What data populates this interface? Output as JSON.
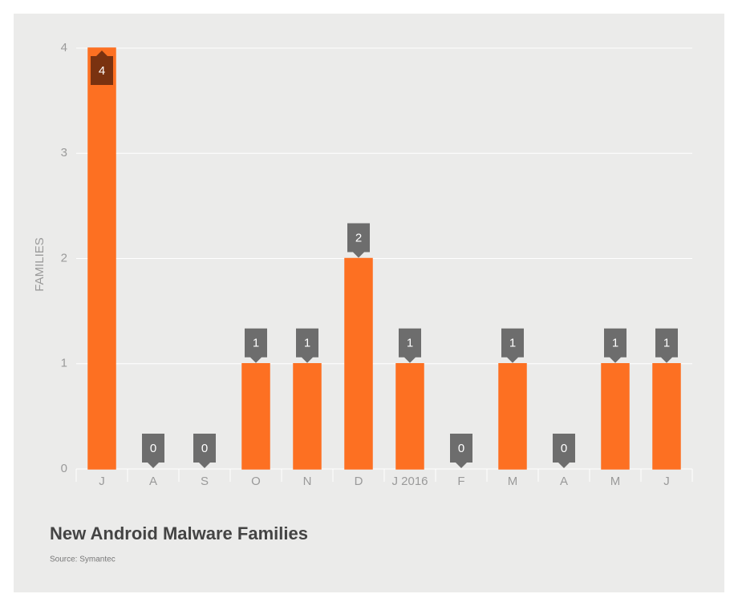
{
  "chart_data": {
    "type": "bar",
    "title": "New Android Malware Families",
    "source": "Source: Symantec",
    "y_label": "FAMILIES",
    "categories": [
      "J",
      "A",
      "S",
      "O",
      "N",
      "D",
      "J 2016",
      "F",
      "M",
      "A",
      "M",
      "J"
    ],
    "values": [
      4,
      0,
      0,
      1,
      1,
      2,
      1,
      0,
      1,
      0,
      1,
      1
    ],
    "color": "#fd7022",
    "ylim": [
      0,
      4
    ],
    "yticks": [
      0,
      1,
      2,
      3,
      4
    ],
    "grid": true
  }
}
